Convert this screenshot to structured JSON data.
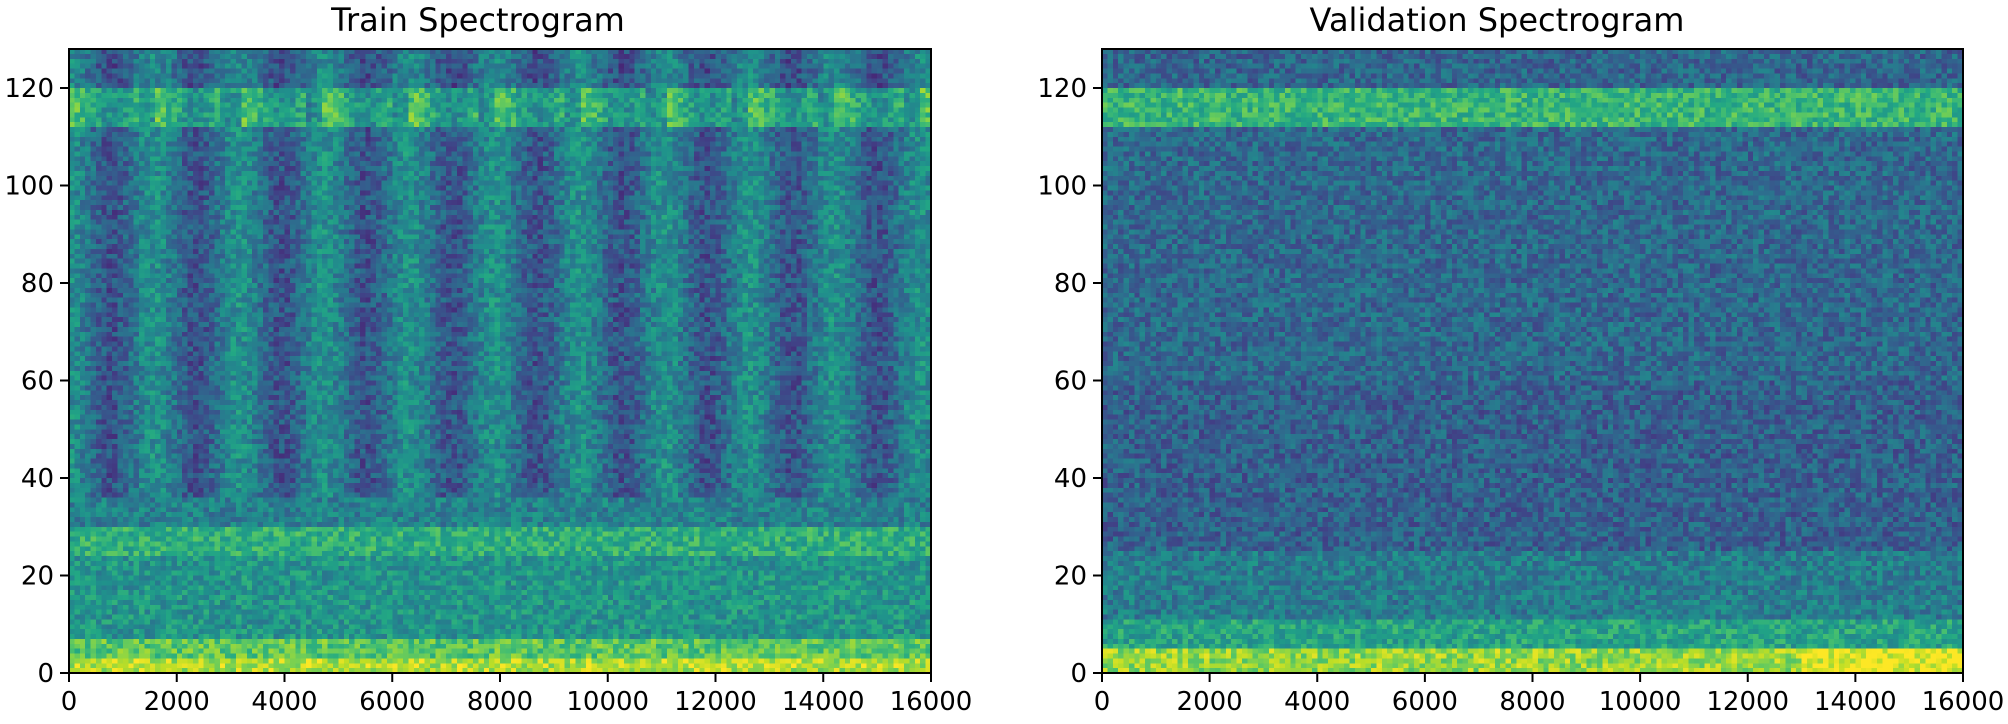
{
  "chart_data": [
    {
      "type": "heatmap",
      "title": "Train Spectrogram",
      "xlabel": "",
      "ylabel": "",
      "xlim": [
        0,
        16000
      ],
      "ylim": [
        0,
        128
      ],
      "xticks": [
        0,
        2000,
        4000,
        6000,
        8000,
        10000,
        12000,
        14000,
        16000
      ],
      "yticks": [
        0,
        20,
        40,
        60,
        80,
        100,
        120
      ],
      "colormap": "viridis",
      "grid": false,
      "time_bins": 160,
      "freq_bins": 128,
      "value_range": [
        0,
        1
      ],
      "bands": [
        {
          "freq_range": [
            0,
            3
          ],
          "level": 0.88
        },
        {
          "freq_range": [
            3,
            7
          ],
          "level": 0.74
        },
        {
          "freq_range": [
            7,
            24
          ],
          "level": 0.52
        },
        {
          "freq_range": [
            24,
            30
          ],
          "level": 0.63
        },
        {
          "freq_range": [
            30,
            36
          ],
          "level": 0.44
        },
        {
          "freq_range": [
            36,
            112
          ],
          "level": 0.38
        },
        {
          "freq_range": [
            112,
            120
          ],
          "level": 0.62
        },
        {
          "freq_range": [
            120,
            128
          ],
          "level": 0.36
        }
      ],
      "periodic_pattern": {
        "period_x": 1580,
        "freq_range": [
          36,
          128
        ],
        "contrast": 0.12
      },
      "band_gaps": {
        "freq_range": [
          112,
          120
        ],
        "period_x": 1580,
        "gap_width_x": 320
      }
    },
    {
      "type": "heatmap",
      "title": "Validation Spectrogram",
      "xlabel": "",
      "ylabel": "",
      "xlim": [
        0,
        16000
      ],
      "ylim": [
        0,
        128
      ],
      "xticks": [
        0,
        2000,
        4000,
        6000,
        8000,
        10000,
        12000,
        14000,
        16000
      ],
      "yticks": [
        0,
        20,
        40,
        60,
        80,
        100,
        120
      ],
      "colormap": "viridis",
      "grid": false,
      "time_bins": 160,
      "freq_bins": 128,
      "value_range": [
        0,
        1
      ],
      "bands": [
        {
          "freq_range": [
            0,
            5
          ],
          "level": 0.84
        },
        {
          "freq_range": [
            5,
            11
          ],
          "level": 0.58
        },
        {
          "freq_range": [
            11,
            25
          ],
          "level": 0.42
        },
        {
          "freq_range": [
            25,
            60
          ],
          "level": 0.31
        },
        {
          "freq_range": [
            60,
            112
          ],
          "level": 0.34
        },
        {
          "freq_range": [
            112,
            120
          ],
          "level": 0.66
        },
        {
          "freq_range": [
            120,
            128
          ],
          "level": 0.33
        }
      ],
      "hotspot": {
        "x_range": [
          13000,
          16000
        ],
        "freq_range": [
          0,
          5
        ],
        "level": 0.97
      }
    }
  ]
}
